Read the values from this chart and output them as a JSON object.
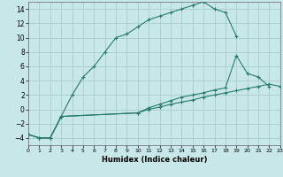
{
  "xlabel": "Humidex (Indice chaleur)",
  "background_color": "#c8e8e8",
  "grid_color": "#a0c8c8",
  "line_color": "#2a7a6a",
  "ylim": [
    -5,
    15
  ],
  "yticks": [
    -4,
    -2,
    0,
    2,
    4,
    6,
    8,
    10,
    12,
    14
  ],
  "xlim": [
    0,
    23
  ],
  "xticks": [
    0,
    1,
    2,
    3,
    4,
    5,
    6,
    7,
    8,
    9,
    10,
    11,
    12,
    13,
    14,
    15,
    16,
    17,
    18,
    19,
    20,
    21,
    22,
    23
  ],
  "line1_x": [
    0,
    1,
    2,
    3,
    4,
    5,
    6,
    7,
    8,
    9,
    10,
    11,
    12,
    13,
    14,
    15,
    16,
    17,
    18,
    19
  ],
  "line1_y": [
    -3.5,
    -4,
    -4,
    -1,
    2,
    4.5,
    6,
    8,
    10,
    10.5,
    11.5,
    12.5,
    13,
    13.5,
    14,
    14.5,
    15,
    14,
    13.5,
    10.2
  ],
  "line2_x": [
    0,
    1,
    2,
    3,
    10,
    11,
    12,
    13,
    14,
    15,
    16,
    17,
    18,
    19,
    20,
    21,
    22
  ],
  "line2_y": [
    -3.5,
    -4,
    -4,
    -1,
    -0.5,
    0.2,
    0.7,
    1.2,
    1.7,
    2.0,
    2.3,
    2.7,
    3.0,
    7.5,
    5.0,
    4.5,
    3.2
  ],
  "line3_x": [
    0,
    1,
    2,
    3,
    10,
    11,
    12,
    13,
    14,
    15,
    16,
    17,
    18,
    19,
    20,
    21,
    22,
    23
  ],
  "line3_y": [
    -3.5,
    -4,
    -4,
    -1,
    -0.5,
    0.0,
    0.3,
    0.7,
    1.0,
    1.3,
    1.7,
    2.0,
    2.3,
    2.6,
    2.9,
    3.2,
    3.5,
    3.2
  ]
}
